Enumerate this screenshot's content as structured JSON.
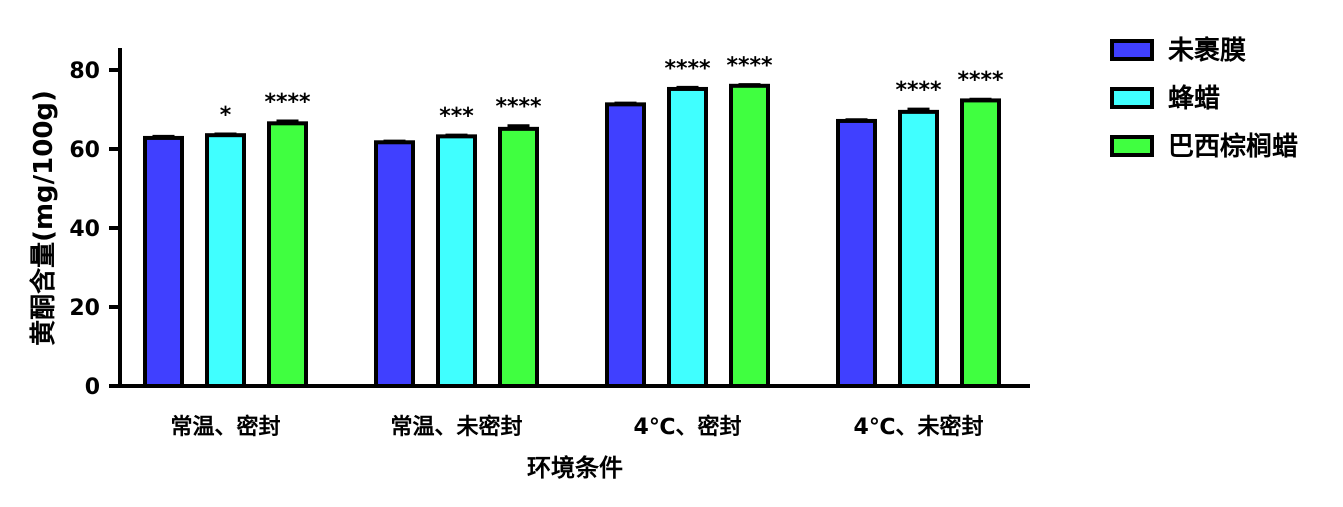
{
  "chart_data": {
    "type": "bar",
    "title": "",
    "xlabel": "环境条件",
    "ylabel": "黄酮含量(mg/100g)",
    "ylim": [
      0,
      85
    ],
    "yticks": [
      0,
      20,
      40,
      60,
      80
    ],
    "categories": [
      "常温、密封",
      "常温、未密封",
      "4℃、密封",
      "4℃、未密封"
    ],
    "series": [
      {
        "name": "未裹膜",
        "color": "#4040ff",
        "values": [
          62.8,
          61.7,
          71.3,
          67.1
        ],
        "errors": [
          0.4,
          0.3,
          0.3,
          0.3
        ],
        "significance": [
          "",
          "",
          "",
          ""
        ]
      },
      {
        "name": "蜂蜡",
        "color": "#40ffff",
        "values": [
          63.5,
          63.2,
          75.2,
          69.4
        ],
        "errors": [
          0.3,
          0.3,
          0.4,
          0.7
        ],
        "significance": [
          "*",
          "***",
          "****",
          "****"
        ]
      },
      {
        "name": "巴西棕榈蜡",
        "color": "#40ff40",
        "values": [
          66.5,
          65.1,
          76.0,
          72.3
        ],
        "errors": [
          0.6,
          0.8,
          0.3,
          0.3
        ],
        "significance": [
          "****",
          "****",
          "****",
          "****"
        ]
      }
    ],
    "legend_position": "top-right",
    "grid": false
  }
}
